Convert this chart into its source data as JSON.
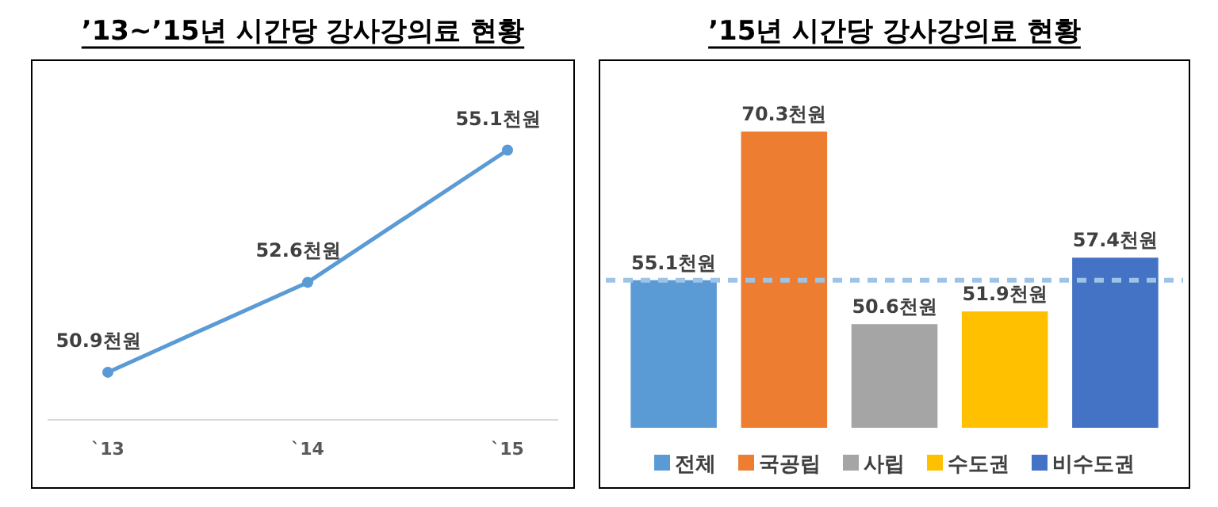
{
  "chart_data": [
    {
      "type": "line",
      "title": "’13~’15년 시간당 강사강의료 현황",
      "categories": [
        "`13",
        "`14",
        "`15"
      ],
      "ylim": [
        50,
        56.8
      ],
      "tick_labels": "x",
      "marker": "circle",
      "line_style": "solid",
      "series": [
        {
          "color": "#5b9bd5",
          "values": [
            50.9,
            52.6,
            55.1
          ],
          "value_labels": [
            "50.9천원",
            "52.6천원",
            "55.1천원"
          ]
        }
      ]
    },
    {
      "type": "bar",
      "title": "’15년 시간당 강사강의료 현황",
      "categories": [
        null
      ],
      "ylim": [
        40,
        77.6
      ],
      "tick_labels": false,
      "legend": "bottom",
      "series": [
        {
          "name": "전체",
          "color": "#5b9bd5",
          "values": [
            55.1
          ],
          "value_labels": [
            "55.1천원"
          ]
        },
        {
          "name": "국공립",
          "color": "#ed7d31",
          "values": [
            70.3
          ],
          "value_labels": [
            "70.3천원"
          ]
        },
        {
          "name": "사립",
          "color": "#a5a5a5",
          "values": [
            50.6
          ],
          "value_labels": [
            "50.6천원"
          ]
        },
        {
          "name": "수도권",
          "color": "#ffc000",
          "values": [
            51.9
          ],
          "value_labels": [
            "51.9천원"
          ]
        },
        {
          "name": "비수도권",
          "color": "#4472c4",
          "values": [
            57.4
          ],
          "value_labels": [
            "57.4천원"
          ]
        }
      ],
      "ref_lines": [
        {
          "axis": "y",
          "value": 55.1,
          "color": "#9dc3e6",
          "line_style": "dashed"
        }
      ]
    }
  ]
}
